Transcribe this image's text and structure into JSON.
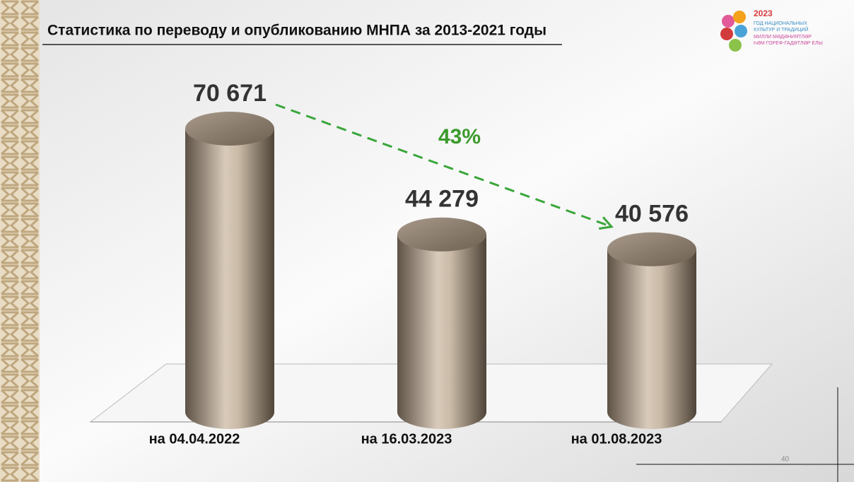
{
  "chart_data": {
    "type": "bar",
    "title": "Статистика по переводу и опубликованию МНПА  за 2013-2021  годы",
    "categories": [
      "на 04.04.2022",
      "на 16.03.2023",
      "на 01.08.2023"
    ],
    "values": [
      70671,
      44279,
      40576
    ],
    "value_labels": [
      "70 671",
      "44 279",
      "40 576"
    ],
    "annotation": "43%",
    "color": "#a89886"
  },
  "logo": {
    "year": "2023",
    "line1": "ГОД НАЦИОНАЛЬНЫХ",
    "line2": "КУЛЬТУР И ТРАДИЦИЙ",
    "line3": "МИЛЛИ МӘДӘНИЯТЛӘР",
    "line4": "ҺӘМ ГОРЕФ-ГАДӘТЛӘР ЕЛЫ"
  },
  "page_number": "40"
}
